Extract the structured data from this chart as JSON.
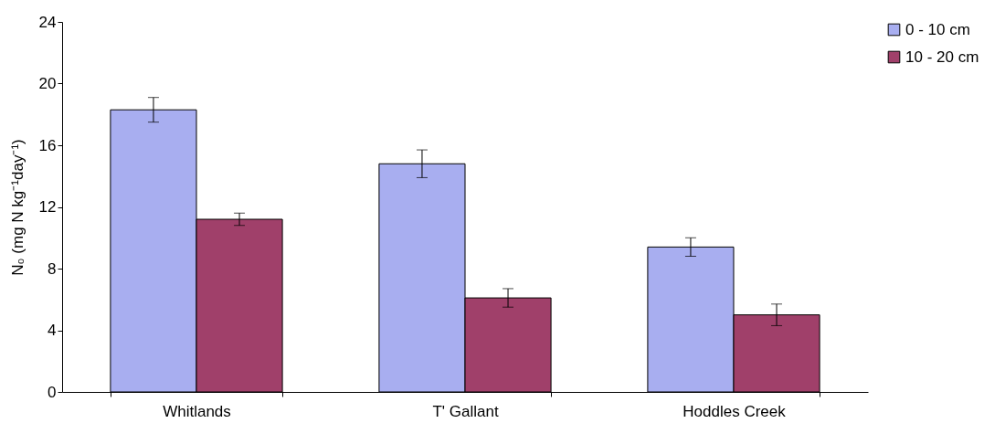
{
  "chart_data": {
    "type": "bar",
    "ylabel": "N₀ (mg N kg⁻¹day⁻¹)",
    "categories": [
      "Whitlands",
      "T' Gallant",
      "Hoddles Creek"
    ],
    "series": [
      {
        "name": "0 - 10 cm",
        "color": "#a8aef0",
        "values": [
          18.3,
          14.8,
          9.4
        ],
        "errors": [
          0.8,
          0.9,
          0.6
        ]
      },
      {
        "name": "10 - 20 cm",
        "color": "#a0406a",
        "values": [
          11.2,
          6.1,
          5.0
        ],
        "errors": [
          0.4,
          0.6,
          0.7
        ]
      }
    ],
    "ylim": [
      0,
      24
    ],
    "yticks": [
      0,
      4,
      8,
      12,
      16,
      20,
      24
    ],
    "grid": false,
    "legend": "right"
  }
}
